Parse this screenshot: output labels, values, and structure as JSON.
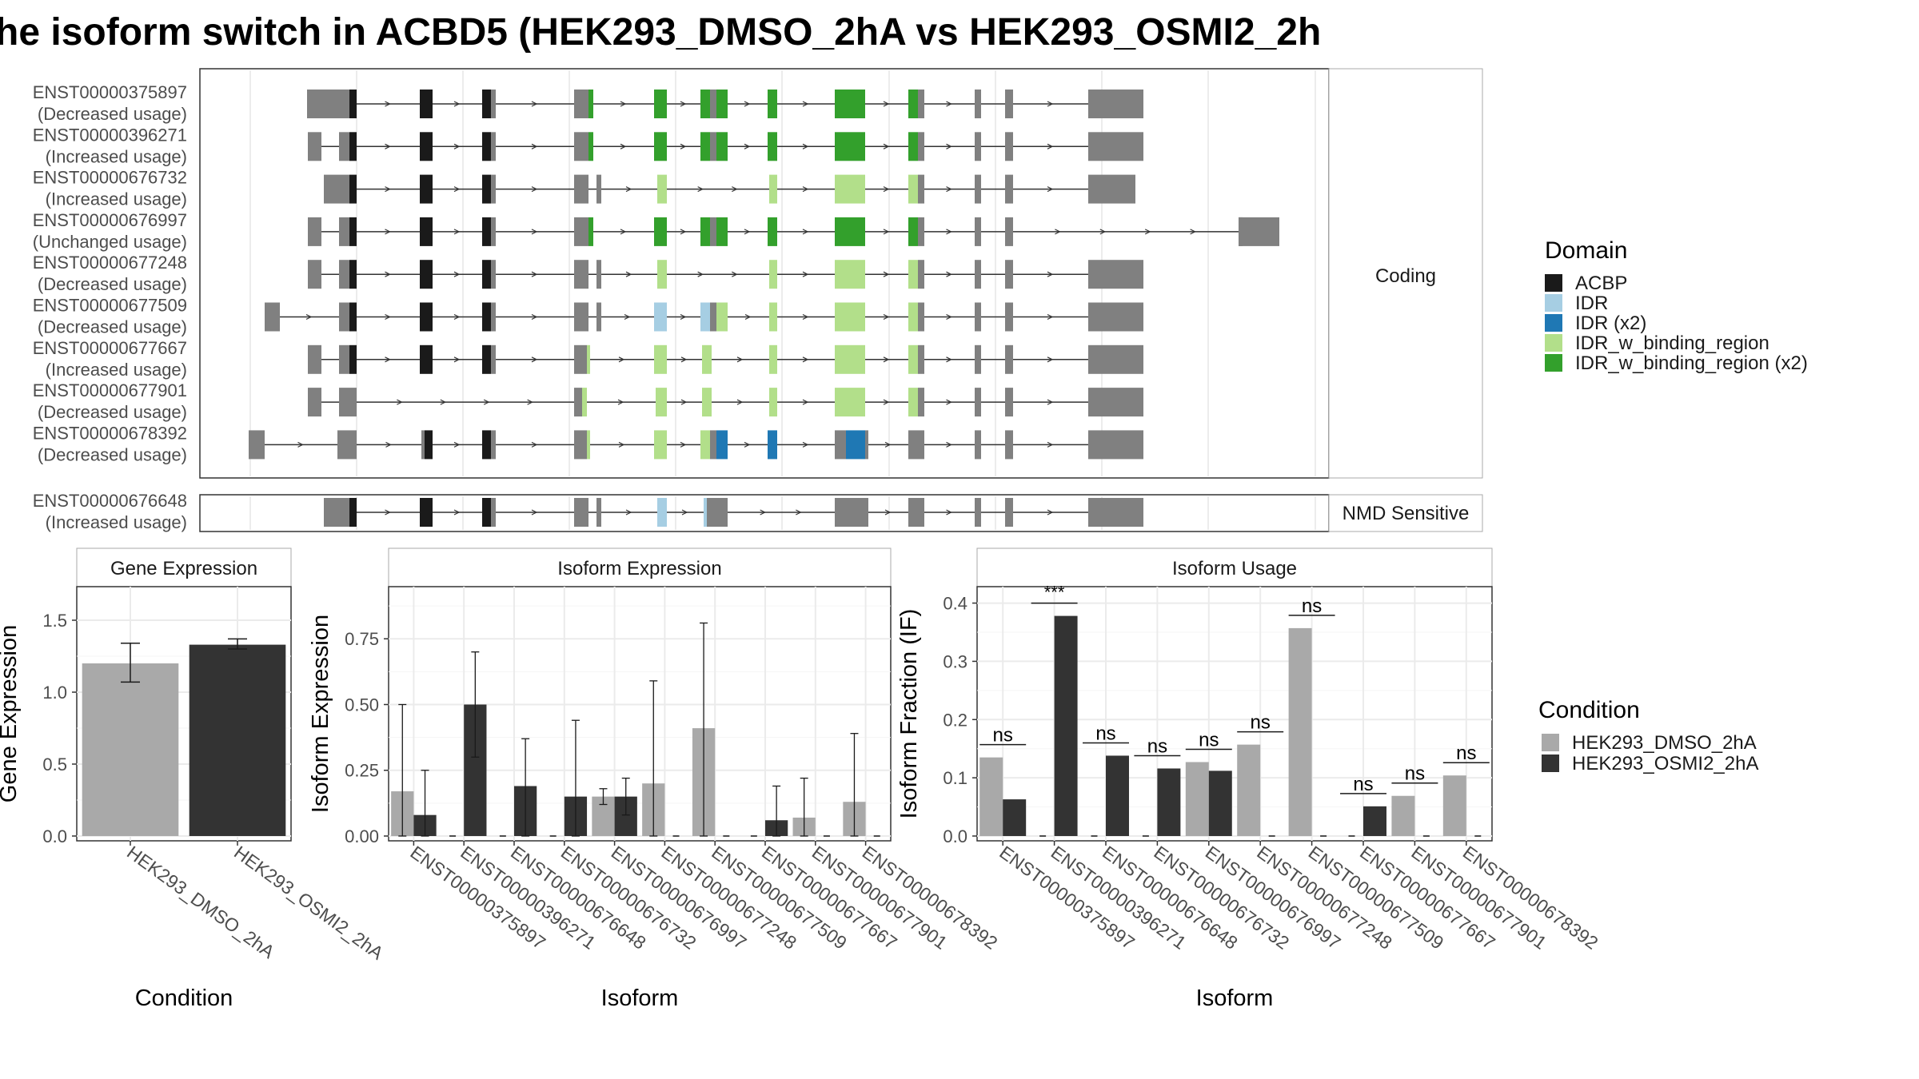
{
  "title": "he isoform switch in ACBD5 (HEK293_DMSO_2hA vs HEK293_OSMI2_2h",
  "structure": {
    "coding_strip_label": "Coding",
    "nmd_strip_label": "NMD Sensitive",
    "domain_legend": {
      "title": "Domain",
      "items": [
        {
          "label": "ACBP",
          "color": "#1a1a1a"
        },
        {
          "label": "IDR",
          "color": "#a6cee3"
        },
        {
          "label": "IDR (x2)",
          "color": "#1f78b4"
        },
        {
          "label": "IDR_w_binding_region",
          "color": "#b2df8a"
        },
        {
          "label": "IDR_w_binding_region (x2)",
          "color": "#33a02c"
        }
      ]
    },
    "coding": [
      {
        "id": "ENST00000375897",
        "usage": "(Decreased usage)"
      },
      {
        "id": "ENST00000396271",
        "usage": "(Increased usage)"
      },
      {
        "id": "ENST00000676732",
        "usage": "(Increased usage)"
      },
      {
        "id": "ENST00000676997",
        "usage": "(Unchanged usage)"
      },
      {
        "id": "ENST00000677248",
        "usage": "(Decreased usage)"
      },
      {
        "id": "ENST00000677509",
        "usage": "(Decreased usage)"
      },
      {
        "id": "ENST00000677667",
        "usage": "(Increased usage)"
      },
      {
        "id": "ENST00000677901",
        "usage": "(Decreased usage)"
      },
      {
        "id": "ENST00000678392",
        "usage": "(Decreased usage)"
      }
    ],
    "nmd": [
      {
        "id": "ENST00000676648",
        "usage": "(Increased usage)"
      }
    ]
  },
  "condition_legend": {
    "title": "Condition",
    "items": [
      {
        "label": "HEK293_DMSO_2hA",
        "color": "#a9a9a9"
      },
      {
        "label": "HEK293_OSMI2_2hA",
        "color": "#333333"
      }
    ]
  },
  "chart_data": [
    {
      "type": "bar",
      "title": "Gene Expression",
      "xlabel": "Condition",
      "ylabel": "Gene Expression",
      "ylim": [
        0,
        1.7
      ],
      "yticks": [
        "0.0",
        "0.5",
        "1.0",
        "1.5"
      ],
      "categories": [
        "HEK293_DMSO_2hA",
        "HEK293_OSMI2_2hA"
      ],
      "values": [
        1.2,
        1.33
      ],
      "err_low": [
        1.07,
        1.3
      ],
      "err_high": [
        1.34,
        1.37
      ]
    },
    {
      "type": "bar",
      "title": "Isoform Expression",
      "xlabel": "Isoform",
      "ylabel": "Isoform Expression",
      "ylim": [
        0,
        0.93
      ],
      "yticks": [
        "0.00",
        "0.25",
        "0.50",
        "0.75"
      ],
      "categories": [
        "ENST00000375897",
        "ENST00000396271",
        "ENST00000676648",
        "ENST00000676732",
        "ENST00000676997",
        "ENST00000677248",
        "ENST00000677509",
        "ENST00000677667",
        "ENST00000677901",
        "ENST00000678392"
      ],
      "series": [
        {
          "name": "HEK293_DMSO_2hA",
          "values": [
            0.17,
            0.0,
            0.0,
            0.0,
            0.15,
            0.2,
            0.41,
            0.0,
            0.07,
            0.13
          ],
          "err_low": [
            0.0,
            0.0,
            0.0,
            0.0,
            0.12,
            0.0,
            0.0,
            0.0,
            0.0,
            0.0
          ],
          "err_high": [
            0.5,
            0.0,
            0.0,
            0.0,
            0.18,
            0.59,
            0.81,
            0.0,
            0.22,
            0.39
          ]
        },
        {
          "name": "HEK293_OSMI2_2hA",
          "values": [
            0.08,
            0.5,
            0.19,
            0.15,
            0.15,
            0.0,
            0.0,
            0.06,
            0.0,
            0.0
          ],
          "err_low": [
            0.0,
            0.3,
            0.0,
            0.0,
            0.08,
            0.0,
            0.0,
            0.0,
            0.0,
            0.0
          ],
          "err_high": [
            0.25,
            0.7,
            0.37,
            0.44,
            0.22,
            0.0,
            0.0,
            0.19,
            0.0,
            0.0
          ]
        }
      ]
    },
    {
      "type": "bar",
      "title": "Isoform Usage",
      "xlabel": "Isoform",
      "ylabel": "Isoform Fraction (IF)",
      "ylim": [
        0,
        0.42
      ],
      "yticks": [
        "0.0",
        "0.1",
        "0.2",
        "0.3",
        "0.4"
      ],
      "categories": [
        "ENST00000375897",
        "ENST00000396271",
        "ENST00000676648",
        "ENST00000676732",
        "ENST00000676997",
        "ENST00000677248",
        "ENST00000677509",
        "ENST00000677667",
        "ENST00000677901",
        "ENST00000678392"
      ],
      "series": [
        {
          "name": "HEK293_DMSO_2hA",
          "values": [
            0.135,
            0.0,
            0.0,
            0.0,
            0.127,
            0.157,
            0.357,
            0.0,
            0.069,
            0.104
          ]
        },
        {
          "name": "HEK293_OSMI2_2hA",
          "values": [
            0.063,
            0.378,
            0.138,
            0.116,
            0.112,
            0.0,
            0.0,
            0.051,
            0.0,
            0.0
          ]
        }
      ],
      "significance": [
        "ns",
        "***",
        "ns",
        "ns",
        "ns",
        "ns",
        "ns",
        "ns",
        "ns",
        "ns"
      ]
    }
  ]
}
